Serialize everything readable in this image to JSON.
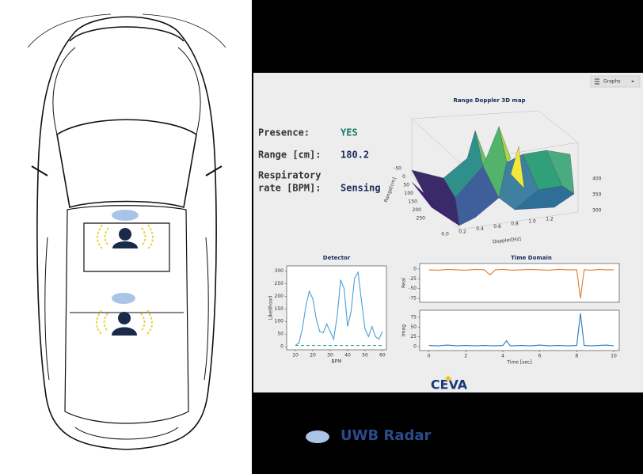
{
  "dashboard": {
    "menu": "Graphs",
    "presence_label": "Presence:",
    "presence_value": "YES",
    "range_label": "Range [cm]:",
    "range_value": "180.2",
    "resp_label_lines": [
      "Respiratory",
      "rate [BPM]:"
    ],
    "resp_value": "Sensing",
    "map3d": {
      "title": "Range Doppler 3D map",
      "range_label": "Range[cm]",
      "doppler_label": "Doppler[Hz]",
      "range_ticks": [
        "-50",
        "0",
        "50",
        "100",
        "150",
        "200",
        "250"
      ],
      "doppler_ticks": [
        "0.0",
        "0.2",
        "0.4",
        "0.6",
        "0.8",
        "1.0",
        "1.2"
      ],
      "z_ticks": [
        "400",
        "350",
        "300"
      ]
    },
    "logo": "CEVA"
  },
  "legend": "UWB Radar",
  "chart_data": [
    {
      "type": "line",
      "title": "Detector",
      "xlabel": "BPM",
      "ylabel": "Likelihood",
      "xlim": [
        5,
        62.3
      ],
      "ylim": [
        -12,
        320
      ],
      "xticks": [
        10,
        20,
        30,
        40,
        50,
        60
      ],
      "yticks": [
        0,
        50,
        100,
        150,
        200,
        250,
        300
      ],
      "x": [
        10,
        12,
        14,
        16,
        18,
        20,
        22,
        24,
        26,
        28,
        30,
        32,
        34,
        36,
        38,
        40,
        42,
        44,
        46,
        48,
        50,
        52,
        54,
        56,
        58,
        60
      ],
      "series": [
        {
          "color": "#4a9fd8",
          "values": [
            5,
            15,
            70,
            160,
            220,
            190,
            110,
            60,
            55,
            90,
            60,
            30,
            120,
            265,
            230,
            80,
            140,
            270,
            295,
            180,
            70,
            40,
            80,
            40,
            30,
            60
          ]
        },
        {
          "color": "#2ca89a",
          "dashed": true,
          "values": [
            5,
            5,
            5,
            5,
            5,
            5,
            5,
            5,
            5,
            5,
            5,
            5,
            5,
            5,
            5,
            5,
            5,
            5,
            5,
            5,
            5,
            5,
            5,
            5,
            5,
            5
          ]
        }
      ]
    },
    {
      "type": "line",
      "title": "Time Domain",
      "ylabel": "Real",
      "xlim": [
        -0.5,
        10.3
      ],
      "ylim": [
        -85,
        14
      ],
      "yticks": [
        0,
        -25,
        -50,
        -75
      ],
      "x": [
        0,
        0.5,
        1,
        1.5,
        2,
        2.5,
        3,
        3.3,
        3.6,
        4,
        4.5,
        5,
        5.5,
        6,
        6.5,
        7,
        7.5,
        8,
        8.2,
        8.4,
        8.8,
        9.2,
        9.6,
        10
      ],
      "series": [
        {
          "color": "#e07b2a",
          "values": [
            -2,
            -3,
            -1,
            -2,
            -3,
            -1,
            -2,
            -15,
            -2,
            -1,
            -3,
            -2,
            -1,
            -2,
            -3,
            -1,
            -2,
            -2,
            -75,
            -2,
            -3,
            -1,
            -2,
            -2
          ]
        }
      ]
    },
    {
      "type": "line",
      "xlabel": "Time [sec]",
      "ylabel": "Imag",
      "xlim": [
        -0.5,
        10.3
      ],
      "ylim": [
        -10,
        93
      ],
      "xticks": [
        0,
        2,
        4,
        6,
        8,
        10
      ],
      "yticks": [
        0,
        25,
        50,
        75
      ],
      "x": [
        0,
        0.5,
        1,
        1.5,
        2,
        2.5,
        3,
        3.5,
        4,
        4.2,
        4.4,
        5,
        5.5,
        6,
        6.5,
        7,
        7.5,
        8,
        8.2,
        8.4,
        8.8,
        9.2,
        9.6,
        10
      ],
      "series": [
        {
          "color": "#2a78c0",
          "values": [
            3,
            2,
            4,
            2,
            3,
            2,
            3,
            2,
            3,
            15,
            2,
            3,
            2,
            4,
            2,
            3,
            2,
            3,
            85,
            3,
            2,
            3,
            4,
            2
          ]
        }
      ]
    }
  ]
}
